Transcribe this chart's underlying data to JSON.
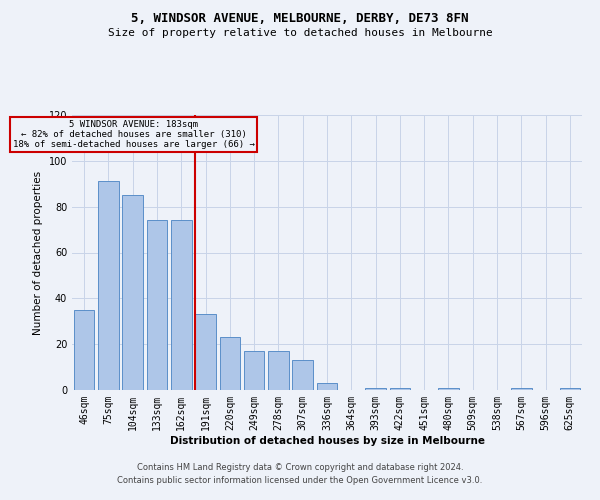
{
  "title": "5, WINDSOR AVENUE, MELBOURNE, DERBY, DE73 8FN",
  "subtitle": "Size of property relative to detached houses in Melbourne",
  "xlabel": "Distribution of detached houses by size in Melbourne",
  "ylabel": "Number of detached properties",
  "categories": [
    "46sqm",
    "75sqm",
    "104sqm",
    "133sqm",
    "162sqm",
    "191sqm",
    "220sqm",
    "249sqm",
    "278sqm",
    "307sqm",
    "336sqm",
    "364sqm",
    "393sqm",
    "422sqm",
    "451sqm",
    "480sqm",
    "509sqm",
    "538sqm",
    "567sqm",
    "596sqm",
    "625sqm"
  ],
  "values": [
    35,
    91,
    85,
    74,
    74,
    33,
    23,
    17,
    17,
    13,
    3,
    0,
    1,
    1,
    0,
    1,
    0,
    0,
    1,
    0,
    1
  ],
  "bar_color": "#aec6e8",
  "bar_edge_color": "#5b8fc9",
  "grid_color": "#c8d4e8",
  "background_color": "#eef2f9",
  "vline_x_index": 5,
  "vline_color": "#cc0000",
  "annotation_title": "5 WINDSOR AVENUE: 183sqm",
  "annotation_line1": "← 82% of detached houses are smaller (310)",
  "annotation_line2": "18% of semi-detached houses are larger (66) →",
  "annotation_box_color": "#cc0000",
  "ylim": [
    0,
    120
  ],
  "yticks": [
    0,
    20,
    40,
    60,
    80,
    100,
    120
  ],
  "footer1": "Contains HM Land Registry data © Crown copyright and database right 2024.",
  "footer2": "Contains public sector information licensed under the Open Government Licence v3.0."
}
